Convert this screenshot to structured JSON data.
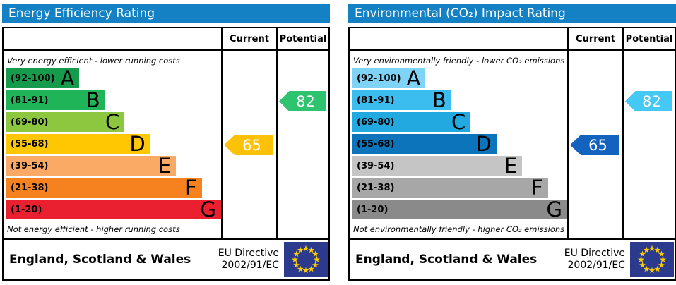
{
  "chart_data": [
    {
      "type": "bar",
      "title": "Energy Efficiency Rating",
      "categories": [
        "A (92-100)",
        "B (81-91)",
        "C (69-80)",
        "D (55-68)",
        "E (39-54)",
        "F (21-38)",
        "G (1-20)"
      ],
      "values": [
        34,
        46,
        55,
        67,
        79,
        91,
        100
      ],
      "annotations": {
        "current": 65,
        "current_band": "D",
        "potential": 82,
        "potential_band": "B"
      },
      "xlabel": "",
      "ylabel": ""
    },
    {
      "type": "bar",
      "title": "Environmental (CO₂) Impact Rating",
      "categories": [
        "A (92-100)",
        "B (81-91)",
        "C (69-80)",
        "D (55-68)",
        "E (39-54)",
        "F (21-38)",
        "G (1-20)"
      ],
      "values": [
        34,
        46,
        55,
        67,
        79,
        91,
        100
      ],
      "annotations": {
        "current": 65,
        "current_band": "D",
        "potential": 82,
        "potential_band": "B"
      },
      "xlabel": "",
      "ylabel": ""
    }
  ],
  "eu_flag": {
    "bg": "#2b3a8c",
    "star_color": "#ffcc00"
  },
  "panels": [
    {
      "title": "Energy Efficiency Rating",
      "title_bg": "#1581c5",
      "columns": {
        "current": "Current",
        "potential": "Potential"
      },
      "top_caption": "Very energy efficient - lower running costs",
      "bottom_caption": "Not energy efficient - higher running costs",
      "bands": [
        {
          "range": "(92-100)",
          "letter": "A",
          "color": "#169b4c",
          "width_pct": 34
        },
        {
          "range": "(81-91)",
          "letter": "B",
          "color": "#20b459",
          "width_pct": 46
        },
        {
          "range": "(69-80)",
          "letter": "C",
          "color": "#8dc63f",
          "width_pct": 55
        },
        {
          "range": "(55-68)",
          "letter": "D",
          "color": "#fec701",
          "width_pct": 67
        },
        {
          "range": "(39-54)",
          "letter": "E",
          "color": "#fbaa65",
          "width_pct": 79
        },
        {
          "range": "(21-38)",
          "letter": "F",
          "color": "#f5821f",
          "width_pct": 91
        },
        {
          "range": "(1-20)",
          "letter": "G",
          "color": "#ea2030",
          "width_pct": 100
        }
      ],
      "current": {
        "value": "65",
        "color": "#fdc108",
        "band_index": 3
      },
      "potential": {
        "value": "82",
        "color": "#2ec36f",
        "band_index": 1
      },
      "footer": {
        "region": "England, Scotland & Wales",
        "directive_line1": "EU Directive",
        "directive_line2": "2002/91/EC"
      }
    },
    {
      "title": "Environmental (CO₂) Impact Rating",
      "title_bg": "#1581c5",
      "columns": {
        "current": "Current",
        "potential": "Potential"
      },
      "top_caption": "Very environmentally friendly - lower CO₂ emissions",
      "bottom_caption": "Not environmentally friendly - higher CO₂ emissions",
      "bands": [
        {
          "range": "(92-100)",
          "letter": "A",
          "color": "#7ed3f6",
          "width_pct": 34
        },
        {
          "range": "(81-91)",
          "letter": "B",
          "color": "#3bbdf0",
          "width_pct": 46
        },
        {
          "range": "(69-80)",
          "letter": "C",
          "color": "#22a9e0",
          "width_pct": 55
        },
        {
          "range": "(55-68)",
          "letter": "D",
          "color": "#0b74ba",
          "width_pct": 67
        },
        {
          "range": "(39-54)",
          "letter": "E",
          "color": "#c5c5c5",
          "width_pct": 79
        },
        {
          "range": "(21-38)",
          "letter": "F",
          "color": "#a7a7a7",
          "width_pct": 91
        },
        {
          "range": "(1-20)",
          "letter": "G",
          "color": "#8a8a8a",
          "width_pct": 100
        }
      ],
      "current": {
        "value": "65",
        "color": "#1363be",
        "band_index": 3
      },
      "potential": {
        "value": "82",
        "color": "#44c8f5",
        "band_index": 1
      },
      "footer": {
        "region": "England, Scotland & Wales",
        "directive_line1": "EU Directive",
        "directive_line2": "2002/91/EC"
      }
    }
  ]
}
